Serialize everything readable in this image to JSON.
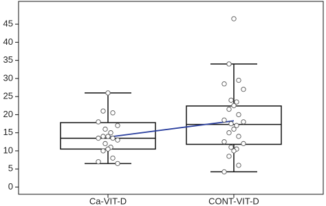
{
  "chart_data": {
    "type": "box",
    "categories": [
      "Ca-VIT-D",
      "CONT-VIT-D"
    ],
    "boxes": [
      {
        "whisker_low": 6.5,
        "q1": 10.5,
        "median": 13.5,
        "q3": 17.8,
        "whisker_high": 26,
        "mean": 13.8
      },
      {
        "whisker_low": 4.2,
        "q1": 11.8,
        "median": 17.3,
        "q3": 22.4,
        "whisker_high": 34,
        "mean": 18.3
      }
    ],
    "points": [
      [
        26,
        21,
        20.5,
        18,
        17,
        16,
        15,
        14,
        14,
        13.5,
        13.5,
        13,
        12,
        11,
        10.5,
        10,
        8,
        7,
        6.5
      ],
      [
        46.5,
        34,
        29.5,
        28.5,
        27,
        24,
        23.5,
        22.5,
        21.5,
        20,
        18.5,
        18,
        17.5,
        17,
        16,
        15,
        14,
        12.5,
        12,
        11,
        10.5,
        10,
        8.5,
        6,
        4.2
      ]
    ],
    "ylim": [
      -2,
      51.3
    ],
    "yticks": [
      0,
      5,
      10,
      15,
      20,
      25,
      30,
      35,
      40,
      45
    ],
    "box_color": "#111111",
    "mean_color": "#2a3f9e"
  }
}
